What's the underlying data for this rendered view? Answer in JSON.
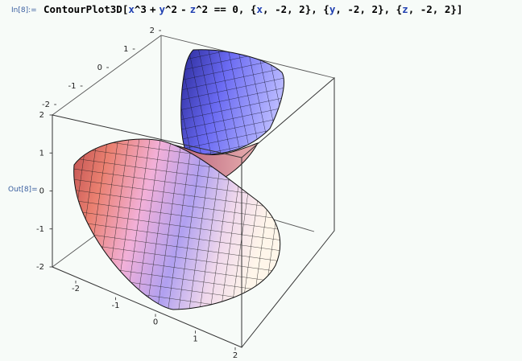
{
  "notebook": {
    "input_label": "In[8]:=",
    "output_label": "Out[8]=",
    "input": {
      "func": "ContourPlot3D",
      "x": "x",
      "y": "y",
      "z": "z",
      "pow_x": "^3",
      "plus": "+",
      "pow_y": "^2",
      "minus": "-",
      "pow_z": "^2",
      "eq": "==",
      "zero": "0,",
      "lo": "-2,",
      "hi": "2}",
      "last": "2}]"
    }
  },
  "plot": {
    "equation": "x^3 + y^2 - z^2 == 0",
    "x_range": [
      -2,
      2
    ],
    "y_range": [
      -2,
      2
    ],
    "z_range": [
      -2,
      2
    ],
    "x_ticks": [
      "-2",
      "-1",
      "0",
      "1",
      "2"
    ],
    "y_ticks": [
      "-2",
      "-1",
      "0",
      "1",
      "2"
    ],
    "z_ticks": [
      "-2",
      "-1",
      "0",
      "1",
      "2"
    ],
    "colors": {
      "upper_sheet": "#6868f0",
      "lower_warm": "#e07070",
      "lower_pink": "#f0b8e8",
      "lower_cream": "#fff4e8",
      "mesh": "#1a1a1a",
      "box": "#444444"
    }
  }
}
